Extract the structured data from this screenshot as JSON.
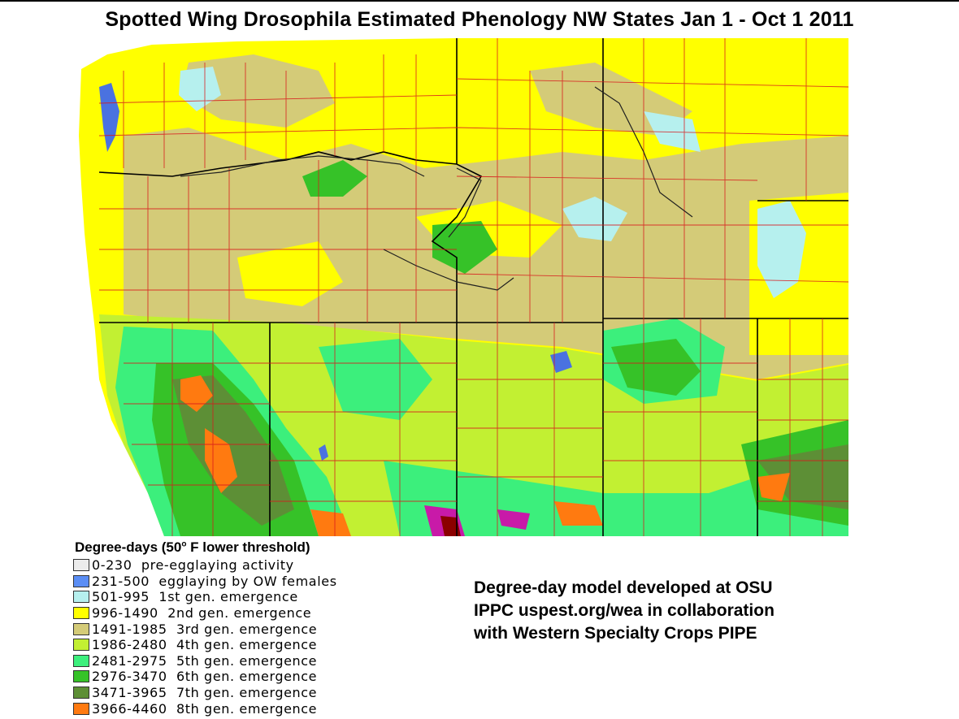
{
  "title": "Spotted Wing Drosophila Estimated Phenology NW States Jan 1 - Oct 1 2011",
  "legend": {
    "heading_prefix": "Degree-days (50",
    "heading_degree": "o",
    "heading_suffix": " F lower threshold)",
    "items": [
      {
        "range": "0-230",
        "label": "pre-egglaying activity",
        "color": "#ececec"
      },
      {
        "range": "231-500",
        "label": "egglaying by OW females",
        "color": "#5b8ef5"
      },
      {
        "range": "501-995",
        "label": "1st gen. emergence",
        "color": "#b6f0ee"
      },
      {
        "range": "996-1490",
        "label": "2nd gen. emergence",
        "color": "#ffff00"
      },
      {
        "range": "1491-1985",
        "label": "3rd gen. emergence",
        "color": "#d4cb78"
      },
      {
        "range": "1986-2480",
        "label": "4th gen. emergence",
        "color": "#c2f032"
      },
      {
        "range": "2481-2975",
        "label": "5th gen. emergence",
        "color": "#3cef7c"
      },
      {
        "range": "2976-3470",
        "label": "6th gen. emergence",
        "color": "#36c228"
      },
      {
        "range": "3471-3965",
        "label": "7th gen. emergence",
        "color": "#5d8f36"
      },
      {
        "range": "3966-4460",
        "label": "8th gen. emergence",
        "color": "#ff7a10"
      }
    ]
  },
  "credit": {
    "line1": "Degree-day model developed at OSU",
    "line2": "IPPC uspest.org/wea in collaboration",
    "line3": "with Western Specialty Crops PIPE"
  },
  "map": {
    "colors": {
      "county_line": "#d7191c",
      "state_line": "#000000",
      "water": "#4a72e0",
      "hot": "#c81aa8"
    }
  }
}
